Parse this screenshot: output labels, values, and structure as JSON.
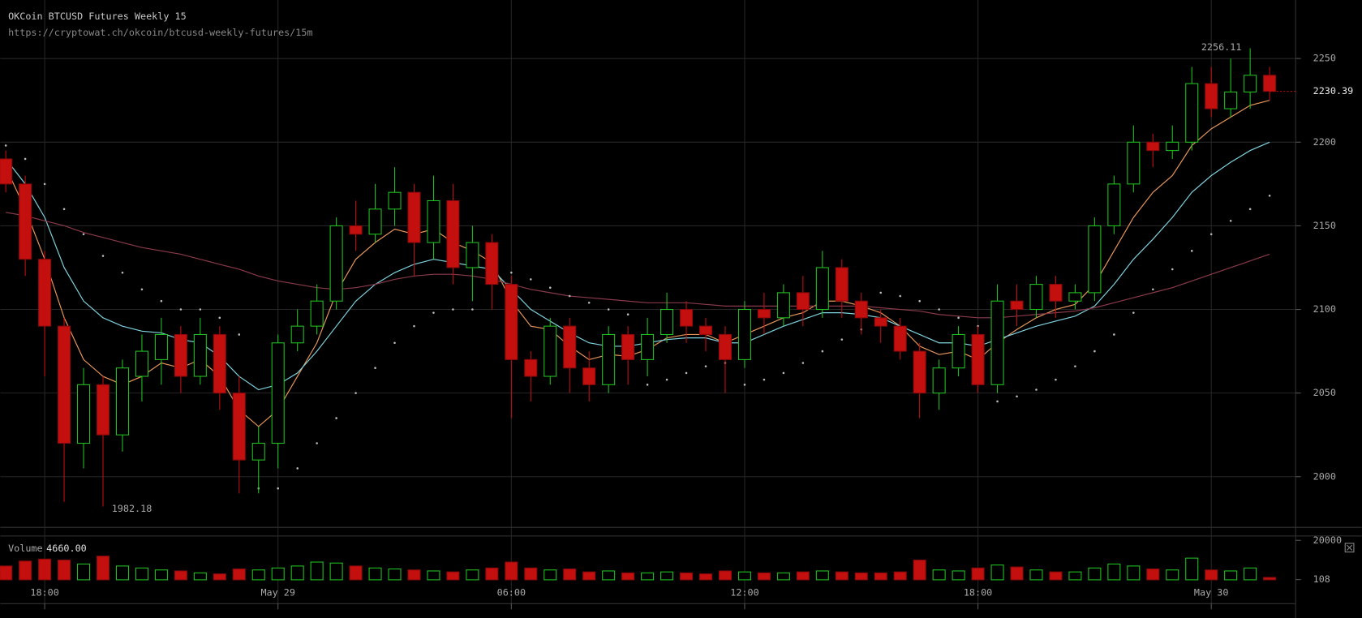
{
  "chart_data": {
    "type": "candlestick",
    "title": "OKCoin BTCUSD Futures Weekly 15",
    "subtitle": "https://cryptowat.ch/okcoin/btcusd-weekly-futures/15m",
    "x": [
      17,
      17.5,
      18,
      18.5,
      19,
      19.5,
      20,
      20.5,
      21,
      21.5,
      22,
      22.5,
      23,
      23.5,
      24,
      24.5,
      25,
      25.5,
      26,
      26.5,
      27,
      27.5,
      28,
      28.5,
      29,
      29.5,
      30,
      30.5,
      31,
      31.5,
      32,
      32.5,
      33,
      33.5,
      34,
      34.5,
      35,
      35.5,
      36,
      36.5,
      37,
      37.5,
      38,
      38.5,
      39,
      39.5,
      40,
      40.5,
      41,
      41.5,
      42,
      42.5,
      43,
      43.5,
      44,
      44.5,
      45,
      45.5,
      46,
      46.5,
      47,
      47.5,
      48,
      48.5,
      49,
      49.5
    ],
    "xlim": [
      16.86,
      50.17
    ],
    "xticks": [
      {
        "value": 18,
        "label": "18:00"
      },
      {
        "value": 24,
        "label": "May 29"
      },
      {
        "value": 30,
        "label": "06:00"
      },
      {
        "value": 36,
        "label": "12:00"
      },
      {
        "value": 42,
        "label": "18:00"
      },
      {
        "value": 48,
        "label": "May 30"
      }
    ],
    "ylim": [
      1970,
      2285
    ],
    "yticks": [
      2000,
      2050,
      2100,
      2150,
      2200,
      2250
    ],
    "grid": true,
    "up_color": "#1fc21f",
    "down_color": "#c40f0f",
    "open": [
      2190,
      2175,
      2130,
      2090,
      2020,
      2055,
      2025,
      2060,
      2070,
      2085,
      2060,
      2085,
      2050,
      2010,
      2020,
      2080,
      2090,
      2105,
      2150,
      2145,
      2160,
      2170,
      2140,
      2165,
      2125,
      2140,
      2115,
      2070,
      2060,
      2090,
      2065,
      2055,
      2085,
      2070,
      2085,
      2100,
      2090,
      2085,
      2070,
      2100,
      2095,
      2110,
      2100,
      2125,
      2105,
      2095,
      2090,
      2075,
      2050,
      2065,
      2085,
      2055,
      2105,
      2100,
      2115,
      2105,
      2110,
      2150,
      2175,
      2200,
      2195,
      2200,
      2235,
      2220,
      2230,
      2240
    ],
    "high": [
      2195,
      2180,
      2135,
      2095,
      2065,
      2060,
      2070,
      2085,
      2095,
      2090,
      2095,
      2090,
      2060,
      2030,
      2085,
      2100,
      2115,
      2155,
      2165,
      2175,
      2185,
      2175,
      2180,
      2175,
      2150,
      2145,
      2120,
      2075,
      2095,
      2095,
      2075,
      2090,
      2090,
      2095,
      2110,
      2105,
      2095,
      2090,
      2105,
      2110,
      2115,
      2120,
      2135,
      2130,
      2110,
      2100,
      2095,
      2080,
      2070,
      2090,
      2090,
      2115,
      2115,
      2120,
      2120,
      2115,
      2155,
      2180,
      2210,
      2205,
      2210,
      2245,
      2245,
      2250,
      2256.11,
      2245
    ],
    "low": [
      2170,
      2120,
      2060,
      1985,
      2005,
      1982.18,
      2015,
      2045,
      2055,
      2050,
      2055,
      2040,
      1990,
      1990,
      2005,
      2075,
      2085,
      2100,
      2135,
      2140,
      2150,
      2120,
      2130,
      2115,
      2105,
      2100,
      2035,
      2045,
      2055,
      2050,
      2045,
      2050,
      2055,
      2060,
      2080,
      2080,
      2075,
      2050,
      2065,
      2085,
      2090,
      2090,
      2095,
      2095,
      2085,
      2080,
      2070,
      2035,
      2040,
      2060,
      2050,
      2050,
      2090,
      2095,
      2095,
      2100,
      2105,
      2145,
      2170,
      2185,
      2190,
      2195,
      2215,
      2215,
      2220,
      2225
    ],
    "close": [
      2175,
      2130,
      2090,
      2020,
      2055,
      2025,
      2065,
      2075,
      2085,
      2060,
      2085,
      2050,
      2010,
      2020,
      2080,
      2090,
      2105,
      2150,
      2145,
      2160,
      2170,
      2140,
      2165,
      2125,
      2140,
      2115,
      2070,
      2060,
      2090,
      2065,
      2055,
      2085,
      2070,
      2085,
      2100,
      2090,
      2085,
      2070,
      2100,
      2095,
      2110,
      2100,
      2125,
      2105,
      2095,
      2090,
      2075,
      2050,
      2065,
      2085,
      2055,
      2105,
      2100,
      2115,
      2105,
      2110,
      2150,
      2175,
      2200,
      2195,
      2200,
      2235,
      2220,
      2230,
      2240,
      2230.39
    ],
    "overlays": [
      {
        "color": "#e8975a",
        "values": [
          2185,
          2160,
          2130,
          2095,
          2070,
          2060,
          2055,
          2060,
          2068,
          2065,
          2070,
          2060,
          2040,
          2030,
          2040,
          2060,
          2080,
          2110,
          2130,
          2140,
          2148,
          2145,
          2148,
          2140,
          2135,
          2128,
          2105,
          2090,
          2088,
          2078,
          2070,
          2073,
          2072,
          2076,
          2083,
          2085,
          2085,
          2080,
          2085,
          2090,
          2095,
          2098,
          2105,
          2105,
          2102,
          2098,
          2090,
          2078,
          2073,
          2075,
          2070,
          2080,
          2088,
          2095,
          2100,
          2103,
          2115,
          2135,
          2155,
          2170,
          2180,
          2198,
          2208,
          2215,
          2222,
          2225
        ]
      },
      {
        "color": "#7fd3e0",
        "values": [
          2190,
          2175,
          2155,
          2125,
          2105,
          2095,
          2090,
          2087,
          2086,
          2082,
          2080,
          2072,
          2060,
          2052,
          2055,
          2062,
          2075,
          2090,
          2105,
          2115,
          2122,
          2127,
          2130,
          2128,
          2126,
          2124,
          2112,
          2100,
          2093,
          2086,
          2080,
          2078,
          2078,
          2080,
          2082,
          2083,
          2083,
          2080,
          2080,
          2085,
          2090,
          2094,
          2098,
          2098,
          2097,
          2095,
          2090,
          2085,
          2080,
          2080,
          2078,
          2082,
          2086,
          2090,
          2093,
          2096,
          2102,
          2115,
          2130,
          2142,
          2155,
          2170,
          2180,
          2188,
          2195,
          2200
        ]
      },
      {
        "color": "#8a3a4a",
        "values": [
          2158,
          2156,
          2153,
          2150,
          2146,
          2143,
          2140,
          2137,
          2135,
          2133,
          2130,
          2127,
          2124,
          2120,
          2117,
          2115,
          2113,
          2112,
          2113,
          2115,
          2118,
          2120,
          2121,
          2121,
          2120,
          2118,
          2115,
          2112,
          2110,
          2108,
          2107,
          2106,
          2105,
          2104,
          2104,
          2104,
          2103,
          2102,
          2102,
          2102,
          2102,
          2102,
          2102,
          2102,
          2102,
          2101,
          2100,
          2099,
          2097,
          2096,
          2095,
          2095,
          2096,
          2097,
          2098,
          2099,
          2101,
          2104,
          2107,
          2110,
          2113,
          2117,
          2121,
          2125,
          2129,
          2133
        ]
      }
    ],
    "sar": {
      "color": "#bbbbbb",
      "values": [
        2198,
        2190,
        2175,
        2160,
        2145,
        2132,
        2122,
        2112,
        2105,
        2100,
        2100,
        2095,
        2085,
        1993,
        1993,
        2005,
        2020,
        2035,
        2050,
        2065,
        2080,
        2090,
        2098,
        2100,
        2100,
        2125,
        2122,
        2118,
        2113,
        2108,
        2104,
        2100,
        2097,
        2055,
        2058,
        2062,
        2066,
        2068,
        2055,
        2058,
        2062,
        2068,
        2075,
        2082,
        2088,
        2110,
        2108,
        2105,
        2100,
        2095,
        2090,
        2045,
        2048,
        2052,
        2058,
        2066,
        2075,
        2085,
        2098,
        2112,
        2124,
        2135,
        2145,
        2153,
        2160,
        2168
      ]
    },
    "volume": {
      "name": "Volume",
      "readout": {
        "value": 4660,
        "label": "4660.00"
      },
      "values": [
        7000,
        9500,
        10500,
        10000,
        8000,
        12000,
        7000,
        6000,
        5000,
        4500,
        3500,
        3000,
        5500,
        5000,
        6000,
        7000,
        9000,
        8500,
        7000,
        6000,
        5500,
        5000,
        4500,
        4000,
        5000,
        6000,
        9000,
        6000,
        5000,
        5500,
        4000,
        4500,
        3500,
        3500,
        4000,
        3500,
        3000,
        4500,
        4000,
        3500,
        3500,
        4000,
        4500,
        4000,
        3500,
        3500,
        4000,
        10000,
        5000,
        4500,
        6000,
        7500,
        6500,
        5000,
        4000,
        4000,
        6000,
        8000,
        7000,
        5500,
        5000,
        11000,
        5000,
        4500,
        6000,
        1200
      ],
      "ylim": [
        0,
        22000
      ],
      "yticks": [
        108,
        20000
      ]
    }
  }
}
